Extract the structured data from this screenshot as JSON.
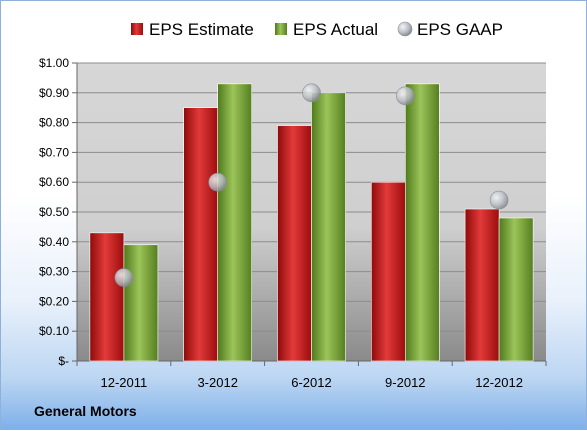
{
  "chart_data": {
    "type": "bar",
    "categories": [
      "12-2011",
      "3-2012",
      "6-2012",
      "9-2012",
      "12-2012"
    ],
    "series": [
      {
        "name": "EPS Estimate",
        "kind": "bar",
        "color": "#cc1111",
        "values": [
          0.43,
          0.85,
          0.79,
          0.6,
          0.51
        ]
      },
      {
        "name": "EPS Actual",
        "kind": "bar",
        "color": "#77a033",
        "values": [
          0.39,
          0.93,
          0.9,
          0.93,
          0.48
        ]
      },
      {
        "name": "EPS GAAP",
        "kind": "marker",
        "color": "#b8bcc2",
        "values": [
          0.28,
          0.6,
          0.9,
          0.89,
          0.54
        ]
      }
    ],
    "ylim": [
      0,
      1.0
    ],
    "yticks": [
      0,
      0.1,
      0.2,
      0.3,
      0.4,
      0.5,
      0.6,
      0.7,
      0.8,
      0.9,
      1.0
    ],
    "ytick_labels": [
      "$-",
      "$0.10",
      "$0.20",
      "$0.30",
      "$0.40",
      "$0.50",
      "$0.60",
      "$0.70",
      "$0.80",
      "$0.90",
      "$1.00"
    ],
    "grid": true,
    "legend_position": "top"
  },
  "footer": {
    "company": "General Motors"
  }
}
